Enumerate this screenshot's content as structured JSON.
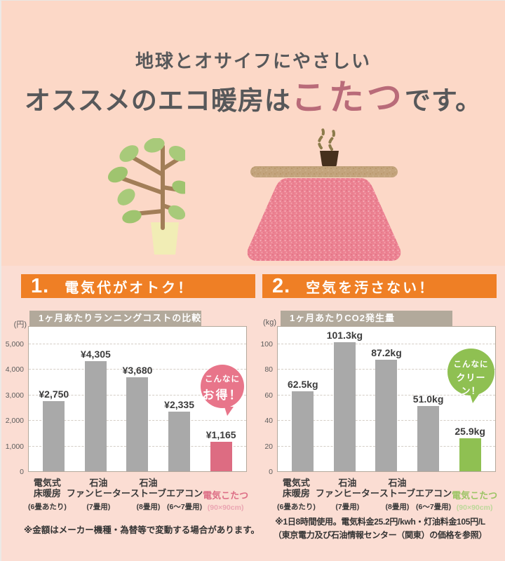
{
  "header": {
    "subtitle": "地球とオサイフにやさしい",
    "title_prefix": "オススメのエコ暖房は",
    "title_accent": "こたつ",
    "title_suffix": "です。"
  },
  "sections": {
    "cost": {
      "number": "1.",
      "heading": "電気代がオトク！",
      "badge_line1": "こんなに",
      "badge_line2": "お得！",
      "footnote": "※金額はメーカー機種・為替等で変動する場合があります。"
    },
    "co2": {
      "number": "2.",
      "heading": "空気を汚さない！",
      "badge_line1": "こんなに",
      "badge_line2": "クリーン！",
      "footnote_line1": "※1日8時間使用。電気料金25.2円/kwh・灯油料金105円/L",
      "footnote_line2": "（東京電力及び石油情報センター（関東）の価格を参照）"
    }
  },
  "colors": {
    "background_top": "#fcd8c7",
    "background_bottom": "#fbddd3",
    "header_orange": "#ef7f25",
    "title_accent": "#b96b79",
    "bar_gray": "#a9a9a9",
    "bar_pink": "#dd6c82",
    "bar_green": "#8fc052",
    "badge_pink": "#e8758a",
    "badge_green": "#8fc052",
    "tab_gray": "#b2a99b"
  },
  "chart_data": [
    {
      "type": "bar",
      "title": "1ヶ月あたりランニングコストの比較",
      "unit": "(円)",
      "ylabel": "(円)",
      "xlabel": "",
      "ylim": [
        0,
        5000
      ],
      "grid": true,
      "legend": false,
      "yticks": [
        {
          "value": 5000,
          "label": "5,000"
        },
        {
          "value": 4000,
          "label": "4,000"
        },
        {
          "value": 3000,
          "label": "3,000"
        },
        {
          "value": 2000,
          "label": "2,000"
        },
        {
          "value": 1000,
          "label": "1,000"
        },
        {
          "value": 0,
          "label": "0"
        }
      ],
      "categories": [
        {
          "line1": "電気式",
          "line2": "床暖房",
          "note": "(6畳あたり)"
        },
        {
          "line1": "石油",
          "line2": "ファンヒーター",
          "note": "(7畳用)"
        },
        {
          "line1": "石油",
          "line2": "ストーブ",
          "note": "(8畳用)"
        },
        {
          "line1": "エアコン",
          "line2": "",
          "note": "(6～7畳用)"
        },
        {
          "line1": "電気こたつ",
          "line2": "",
          "note": "(90×90cm)"
        }
      ],
      "values": [
        2750,
        4305,
        3680,
        2335,
        1165
      ],
      "value_labels": [
        "¥2,750",
        "¥4,305",
        "¥3,680",
        "¥2,335",
        "¥1,165"
      ],
      "bar_colors": [
        "#a9a9a9",
        "#a9a9a9",
        "#a9a9a9",
        "#a9a9a9",
        "#dd6c82"
      ]
    },
    {
      "type": "bar",
      "title": "1ヶ月あたりCO2発生量",
      "unit": "(kg)",
      "ylabel": "(kg)",
      "xlabel": "",
      "ylim": [
        0,
        100
      ],
      "grid": true,
      "legend": false,
      "yticks": [
        {
          "value": 100,
          "label": "100"
        },
        {
          "value": 80,
          "label": "80"
        },
        {
          "value": 60,
          "label": "60"
        },
        {
          "value": 40,
          "label": "40"
        },
        {
          "value": 20,
          "label": "20"
        },
        {
          "value": 0,
          "label": "0"
        }
      ],
      "categories": [
        {
          "line1": "電気式",
          "line2": "床暖房",
          "note": "(6畳あたり)"
        },
        {
          "line1": "石油",
          "line2": "ファンヒーター",
          "note": "(7畳用)"
        },
        {
          "line1": "石油",
          "line2": "ストーブ",
          "note": "(8畳用)"
        },
        {
          "line1": "エアコン",
          "line2": "",
          "note": "(6～7畳用)"
        },
        {
          "line1": "電気こたつ",
          "line2": "",
          "note": "(90×90cm)"
        }
      ],
      "values": [
        62.5,
        101.3,
        87.2,
        51.0,
        25.9
      ],
      "value_labels": [
        "62.5kg",
        "101.3kg",
        "87.2kg",
        "51.0kg",
        "25.9kg"
      ],
      "bar_colors": [
        "#a9a9a9",
        "#a9a9a9",
        "#a9a9a9",
        "#a9a9a9",
        "#8fc052"
      ]
    }
  ]
}
